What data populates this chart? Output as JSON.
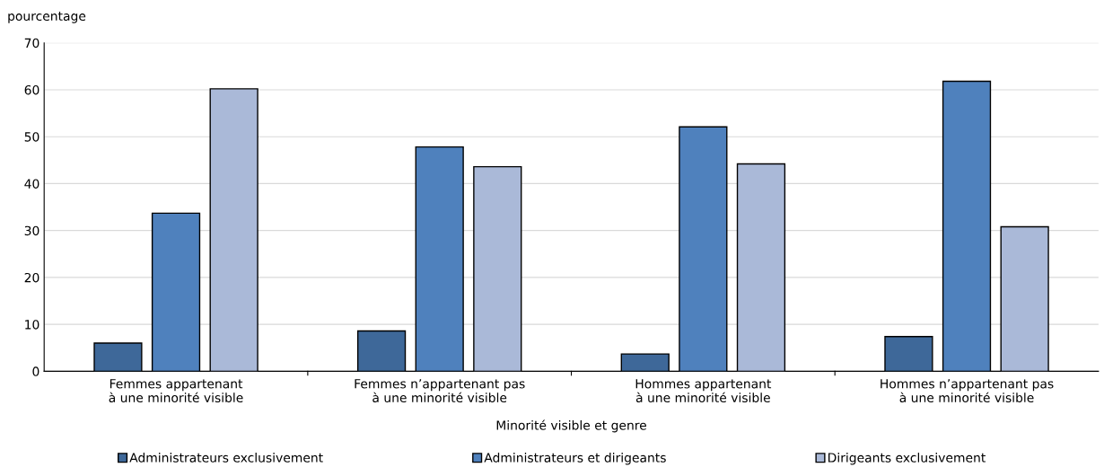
{
  "chart_data": {
    "type": "bar",
    "ylabel": "pourcentage",
    "xlabel": "Minorité visible et genre",
    "categories": [
      "Femmes appartenant\nà une minorité visible",
      "Femmes n’appartenant pas\nà une minorité visible",
      "Hommes appartenant\nà une minorité visible",
      "Hommes n’appartenant pas\nà une minorité visible"
    ],
    "series": [
      {
        "name": "Administrateurs exclusivement",
        "color": "#3e6899",
        "values": [
          6.0,
          8.6,
          3.7,
          7.4
        ]
      },
      {
        "name": "Administrateurs et dirigeants",
        "color": "#4f81bd",
        "values": [
          33.7,
          47.8,
          52.1,
          61.8
        ]
      },
      {
        "name": "Dirigeants exclusivement",
        "color": "#aab9d8",
        "values": [
          60.2,
          43.6,
          44.2,
          30.8
        ]
      }
    ],
    "ylim": [
      0,
      70
    ],
    "yticks": [
      0,
      10,
      20,
      30,
      40,
      50,
      60,
      70
    ],
    "grid": "y",
    "legend": "bottom"
  }
}
